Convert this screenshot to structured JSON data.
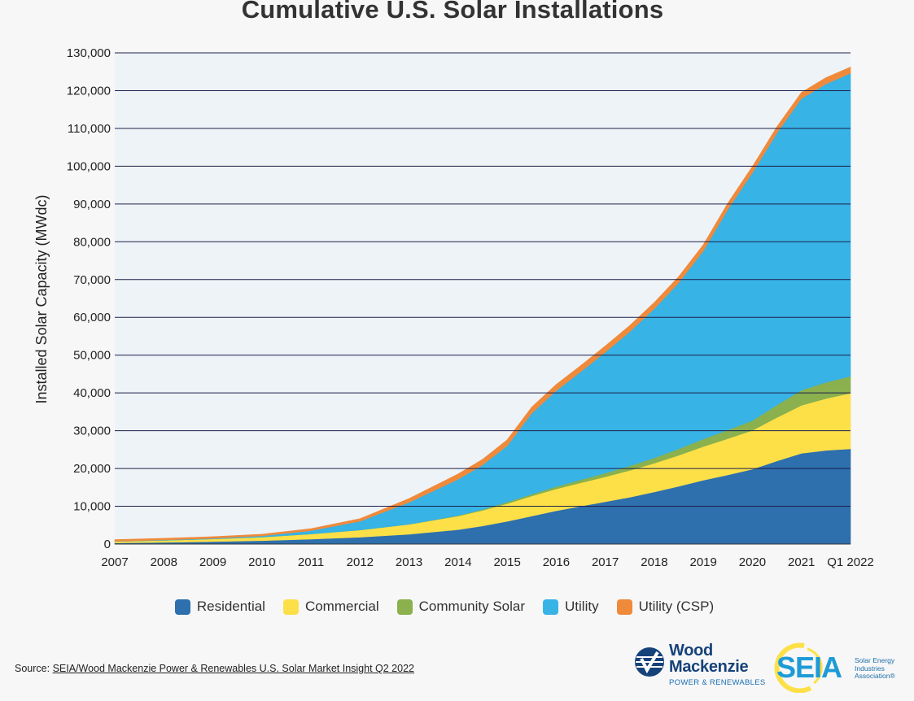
{
  "chart_data": {
    "type": "area",
    "stacked": true,
    "title": "Cumulative U.S. Solar Installations",
    "ylabel": "Installed Solar Capacity (MWdc)",
    "xlabel": "",
    "ylim": [
      0,
      130000
    ],
    "yticks": [
      "0",
      "10,000",
      "20,000",
      "30,000",
      "40,000",
      "50,000",
      "60,000",
      "70,000",
      "80,000",
      "90,000",
      "100,000",
      "110,000",
      "120,000",
      "130,000"
    ],
    "x_tick_labels": [
      "2007",
      "2008",
      "2009",
      "2010",
      "2011",
      "2012",
      "2013",
      "2014",
      "2015",
      "2016",
      "2017",
      "2018",
      "2019",
      "2020",
      "2021",
      "Q1 2022"
    ],
    "x": [
      2007,
      2008,
      2009,
      2010,
      2011,
      2012,
      2013,
      2014,
      2014.5,
      2015,
      2015.5,
      2016,
      2016.5,
      2017,
      2017.5,
      2018,
      2018.5,
      2019,
      2019.5,
      2020,
      2020.5,
      2021,
      2021.5,
      2022
    ],
    "series": [
      {
        "name": "Residential",
        "color": "#2e6fad",
        "values": [
          300,
          450,
          650,
          900,
          1300,
          1800,
          2600,
          3800,
          4800,
          6000,
          7400,
          8800,
          10000,
          11200,
          12400,
          13800,
          15300,
          16900,
          18300,
          19800,
          22000,
          24000,
          24800,
          25200
        ]
      },
      {
        "name": "Commercial",
        "color": "#fde048",
        "values": [
          380,
          520,
          700,
          950,
          1350,
          1900,
          2600,
          3600,
          4100,
          4700,
          5300,
          5800,
          6200,
          6600,
          7100,
          7600,
          8200,
          8900,
          9600,
          10300,
          11500,
          12700,
          13700,
          14700
        ]
      },
      {
        "name": "Community Solar",
        "color": "#8ab14e",
        "values": [
          0,
          0,
          0,
          0,
          10,
          20,
          50,
          150,
          250,
          400,
          500,
          600,
          800,
          1000,
          1200,
          1400,
          1700,
          2000,
          2300,
          2600,
          3300,
          4000,
          4300,
          4500
        ]
      },
      {
        "name": "Utility",
        "color": "#37b3e6",
        "values": [
          50,
          100,
          150,
          300,
          900,
          2300,
          5800,
          9600,
          11800,
          14900,
          21400,
          25400,
          28600,
          32000,
          35500,
          39500,
          44000,
          49800,
          58400,
          65600,
          72000,
          77200,
          79000,
          80200
        ]
      },
      {
        "name": "Utility (CSP)",
        "color": "#f08a3b",
        "values": [
          450,
          450,
          450,
          450,
          500,
          700,
          1000,
          1400,
          1500,
          1600,
          1650,
          1650,
          1650,
          1650,
          1650,
          1650,
          1650,
          1650,
          1650,
          1650,
          1650,
          1650,
          1650,
          1650
        ]
      }
    ],
    "grid": true,
    "legend_position": "bottom"
  },
  "source": {
    "prefix": "Source: ",
    "link_text": "SEIA/Wood Mackenzie Power & Renewables U.S. Solar Market Insight Q2 2022"
  },
  "logos": {
    "woodmac_line1": "Wood",
    "woodmac_line2": "Mackenzie",
    "woodmac_sub": "POWER & RENEWABLES",
    "seia_word": "SEIA",
    "seia_sub1": "Solar Energy",
    "seia_sub2": "Industries",
    "seia_sub3": "Association®"
  }
}
